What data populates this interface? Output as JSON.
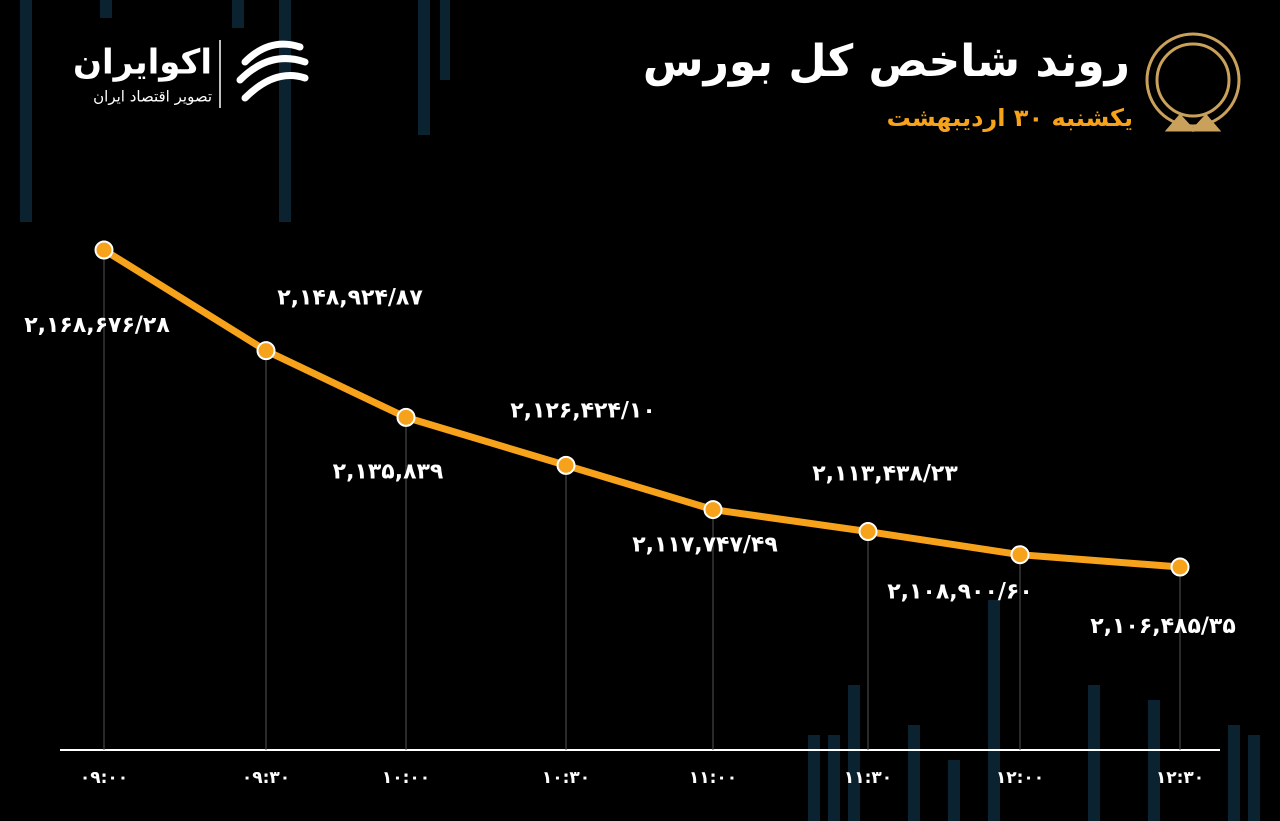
{
  "brand": {
    "name": "اکوایران",
    "tagline": "تصویر اقتصاد ایران"
  },
  "chart_data": {
    "type": "line",
    "title": "روند شاخص کل بورس",
    "subtitle": "یکشنبه ۳۰ اردیبهشت",
    "categories": [
      "۰۹:۰۰",
      "۰۹:۳۰",
      "۱۰:۰۰",
      "۱۰:۳۰",
      "۱۱:۰۰",
      "۱۱:۳۰",
      "۱۲:۰۰",
      "۱۲:۳۰"
    ],
    "series": [
      {
        "name": "شاخص کل",
        "color": "#f7a21b",
        "values": [
          2168676.28,
          2148924.87,
          2135839,
          2126424.1,
          2117747.49,
          2113438.23,
          2108900.6,
          2106485.35
        ],
        "value_labels": [
          "۲,۱۶۸,۶۷۶/۲۸",
          "۲,۱۴۸,۹۲۴/۸۷",
          "۲,۱۳۵,۸۳۹",
          "۲,۱۲۶,۴۲۴/۱۰",
          "۲,۱۱۷,۷۴۷/۴۹",
          "۲,۱۱۳,۴۳۸/۲۳",
          "۲,۱۰۸,۹۰۰/۶۰",
          "۲,۱۰۶,۴۸۵/۳۵"
        ]
      }
    ]
  }
}
